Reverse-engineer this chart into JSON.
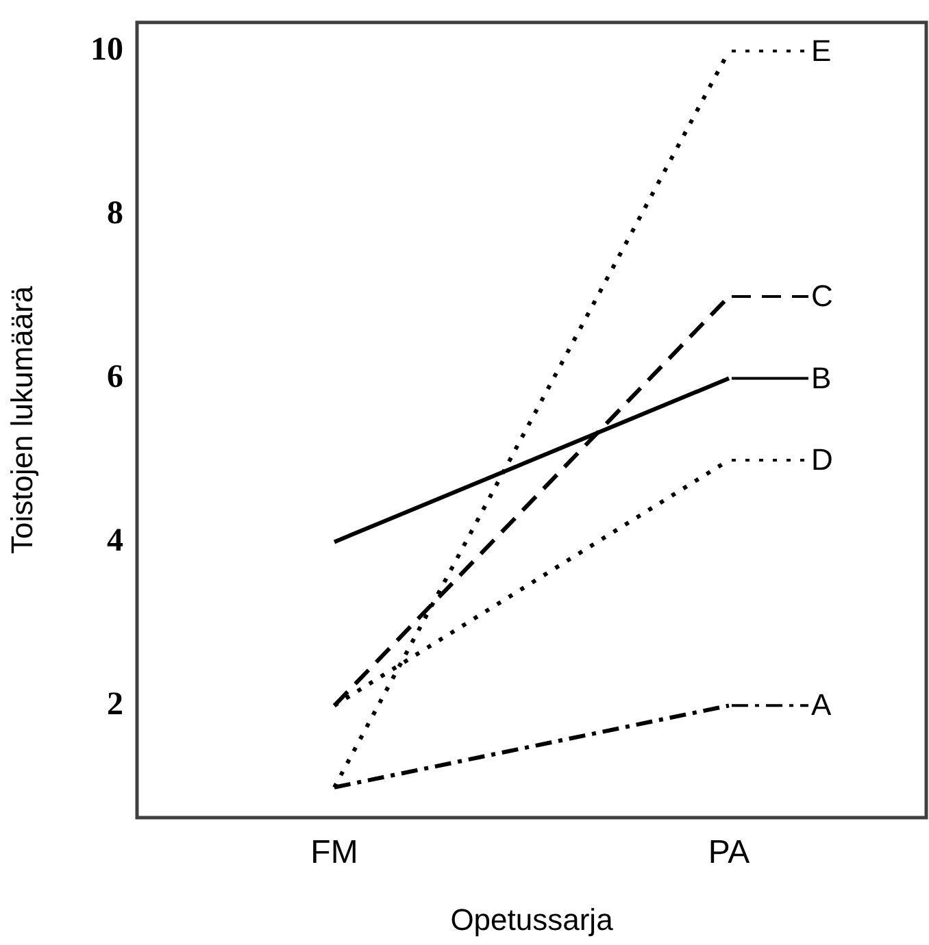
{
  "chart_data": {
    "type": "line",
    "xlabel": "Opetussarja",
    "ylabel": "Toistojen lukumäärä",
    "categories": [
      "FM",
      "PA"
    ],
    "ylim": [
      0.63,
      10.35
    ],
    "yticks": [
      2,
      4,
      6,
      8,
      10
    ],
    "grid": false,
    "legend": "right",
    "marker": "none",
    "series": [
      {
        "name": "A",
        "color": "#000000",
        "line_style": "dashdot",
        "values": [
          1,
          2
        ]
      },
      {
        "name": "B",
        "color": "#000000",
        "line_style": "solid",
        "values": [
          4,
          6
        ]
      },
      {
        "name": "C",
        "color": "#000000",
        "line_style": "dashed",
        "values": [
          2,
          7
        ]
      },
      {
        "name": "D",
        "color": "#000000",
        "line_style": "dotted",
        "values": [
          2,
          5
        ]
      },
      {
        "name": "E",
        "color": "#000000",
        "line_style": "dotted",
        "values": [
          1,
          10
        ]
      }
    ]
  }
}
